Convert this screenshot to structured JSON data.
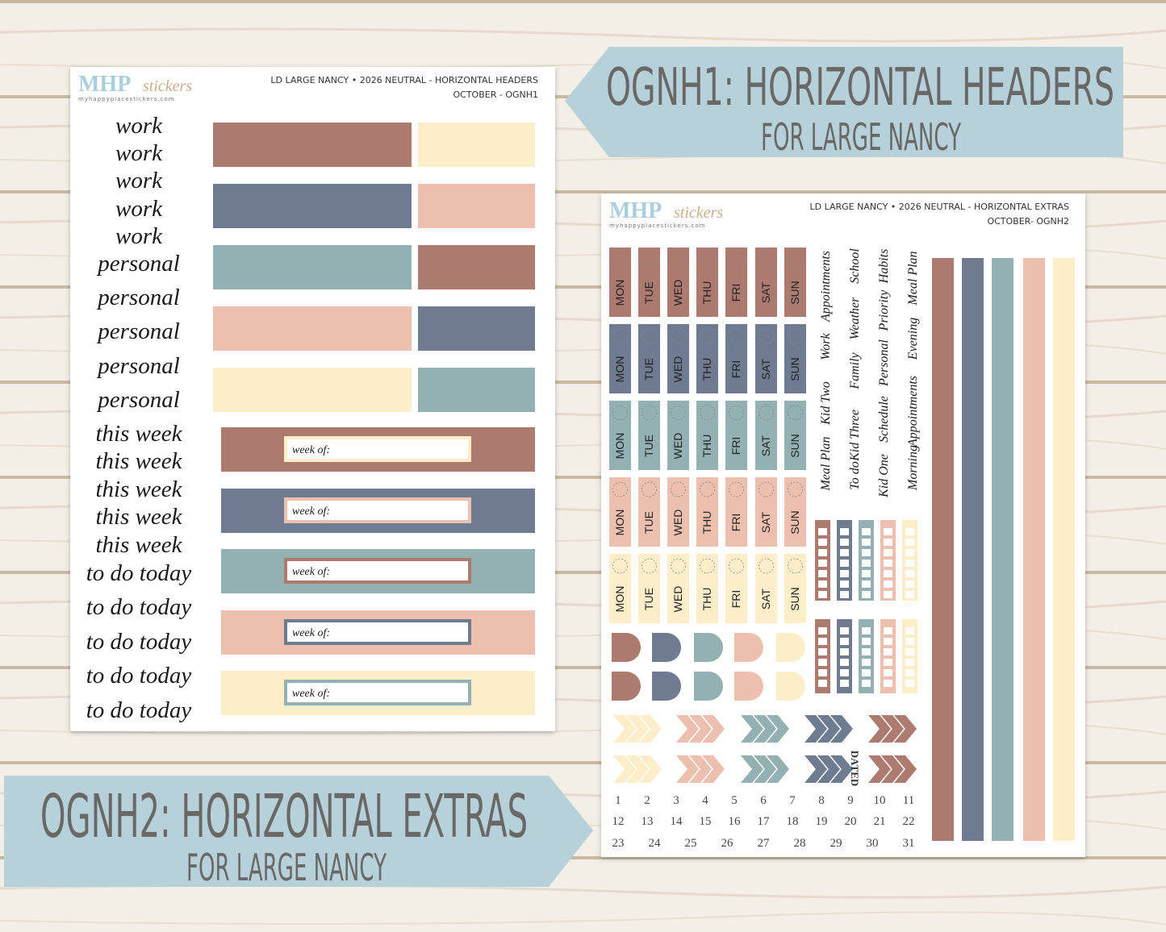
{
  "banners": [
    {
      "title": "OGNH1: HORIZONTAL HEADERS",
      "subtitle": "FOR LARGE NANCY"
    },
    {
      "title": "OGNH2: HORIZONTAL EXTRAS",
      "subtitle": "FOR LARGE NANCY"
    }
  ],
  "sheets": [
    {
      "logo": {
        "brand": "MHP",
        "script": "stickers",
        "url": "myhappyplacestickers.com"
      },
      "header": {
        "line1": "LD LARGE NANCY • 2026 NEUTRAL - HORIZONTAL HEADERS",
        "line2": "OCTOBER - OGNH1"
      },
      "labels": [
        "work",
        "work",
        "work",
        "work",
        "work",
        "personal",
        "personal",
        "personal",
        "personal",
        "personal",
        "this week",
        "this week",
        "this week",
        "this week",
        "this week",
        "to do today",
        "to do today",
        "to do today",
        "to do today",
        "to do today"
      ],
      "field_label": "week of:"
    },
    {
      "logo": {
        "brand": "MHP",
        "script": "stickers",
        "url": "myhappyplacestickers.com"
      },
      "header": {
        "line1": "LD LARGE NANCY • 2026 NEUTRAL - HORIZONTAL EXTRAS",
        "line2": "OCTOBER- OGNH2"
      },
      "days": [
        "MON",
        "TUE",
        "WED",
        "THU",
        "FRI",
        "SAT",
        "SUN"
      ],
      "words": [
        [
          "Meal Plan",
          "Kid Two",
          "Work",
          "Appointments"
        ],
        [
          "To do",
          "Kid Three",
          "Family",
          "Weather",
          "School"
        ],
        [
          "Kid One",
          "Schedule",
          "Personal",
          "Priority",
          "Habits"
        ],
        [
          "Morning",
          "Appointments",
          "Evening",
          "Meal Plan"
        ]
      ],
      "dated": "DATED",
      "dates": [
        1,
        2,
        3,
        4,
        5,
        6,
        7,
        8,
        9,
        10,
        11,
        12,
        13,
        14,
        15,
        16,
        17,
        18,
        19,
        20,
        21,
        22,
        23,
        24,
        25,
        26,
        27,
        28,
        29,
        30,
        31
      ]
    }
  ]
}
